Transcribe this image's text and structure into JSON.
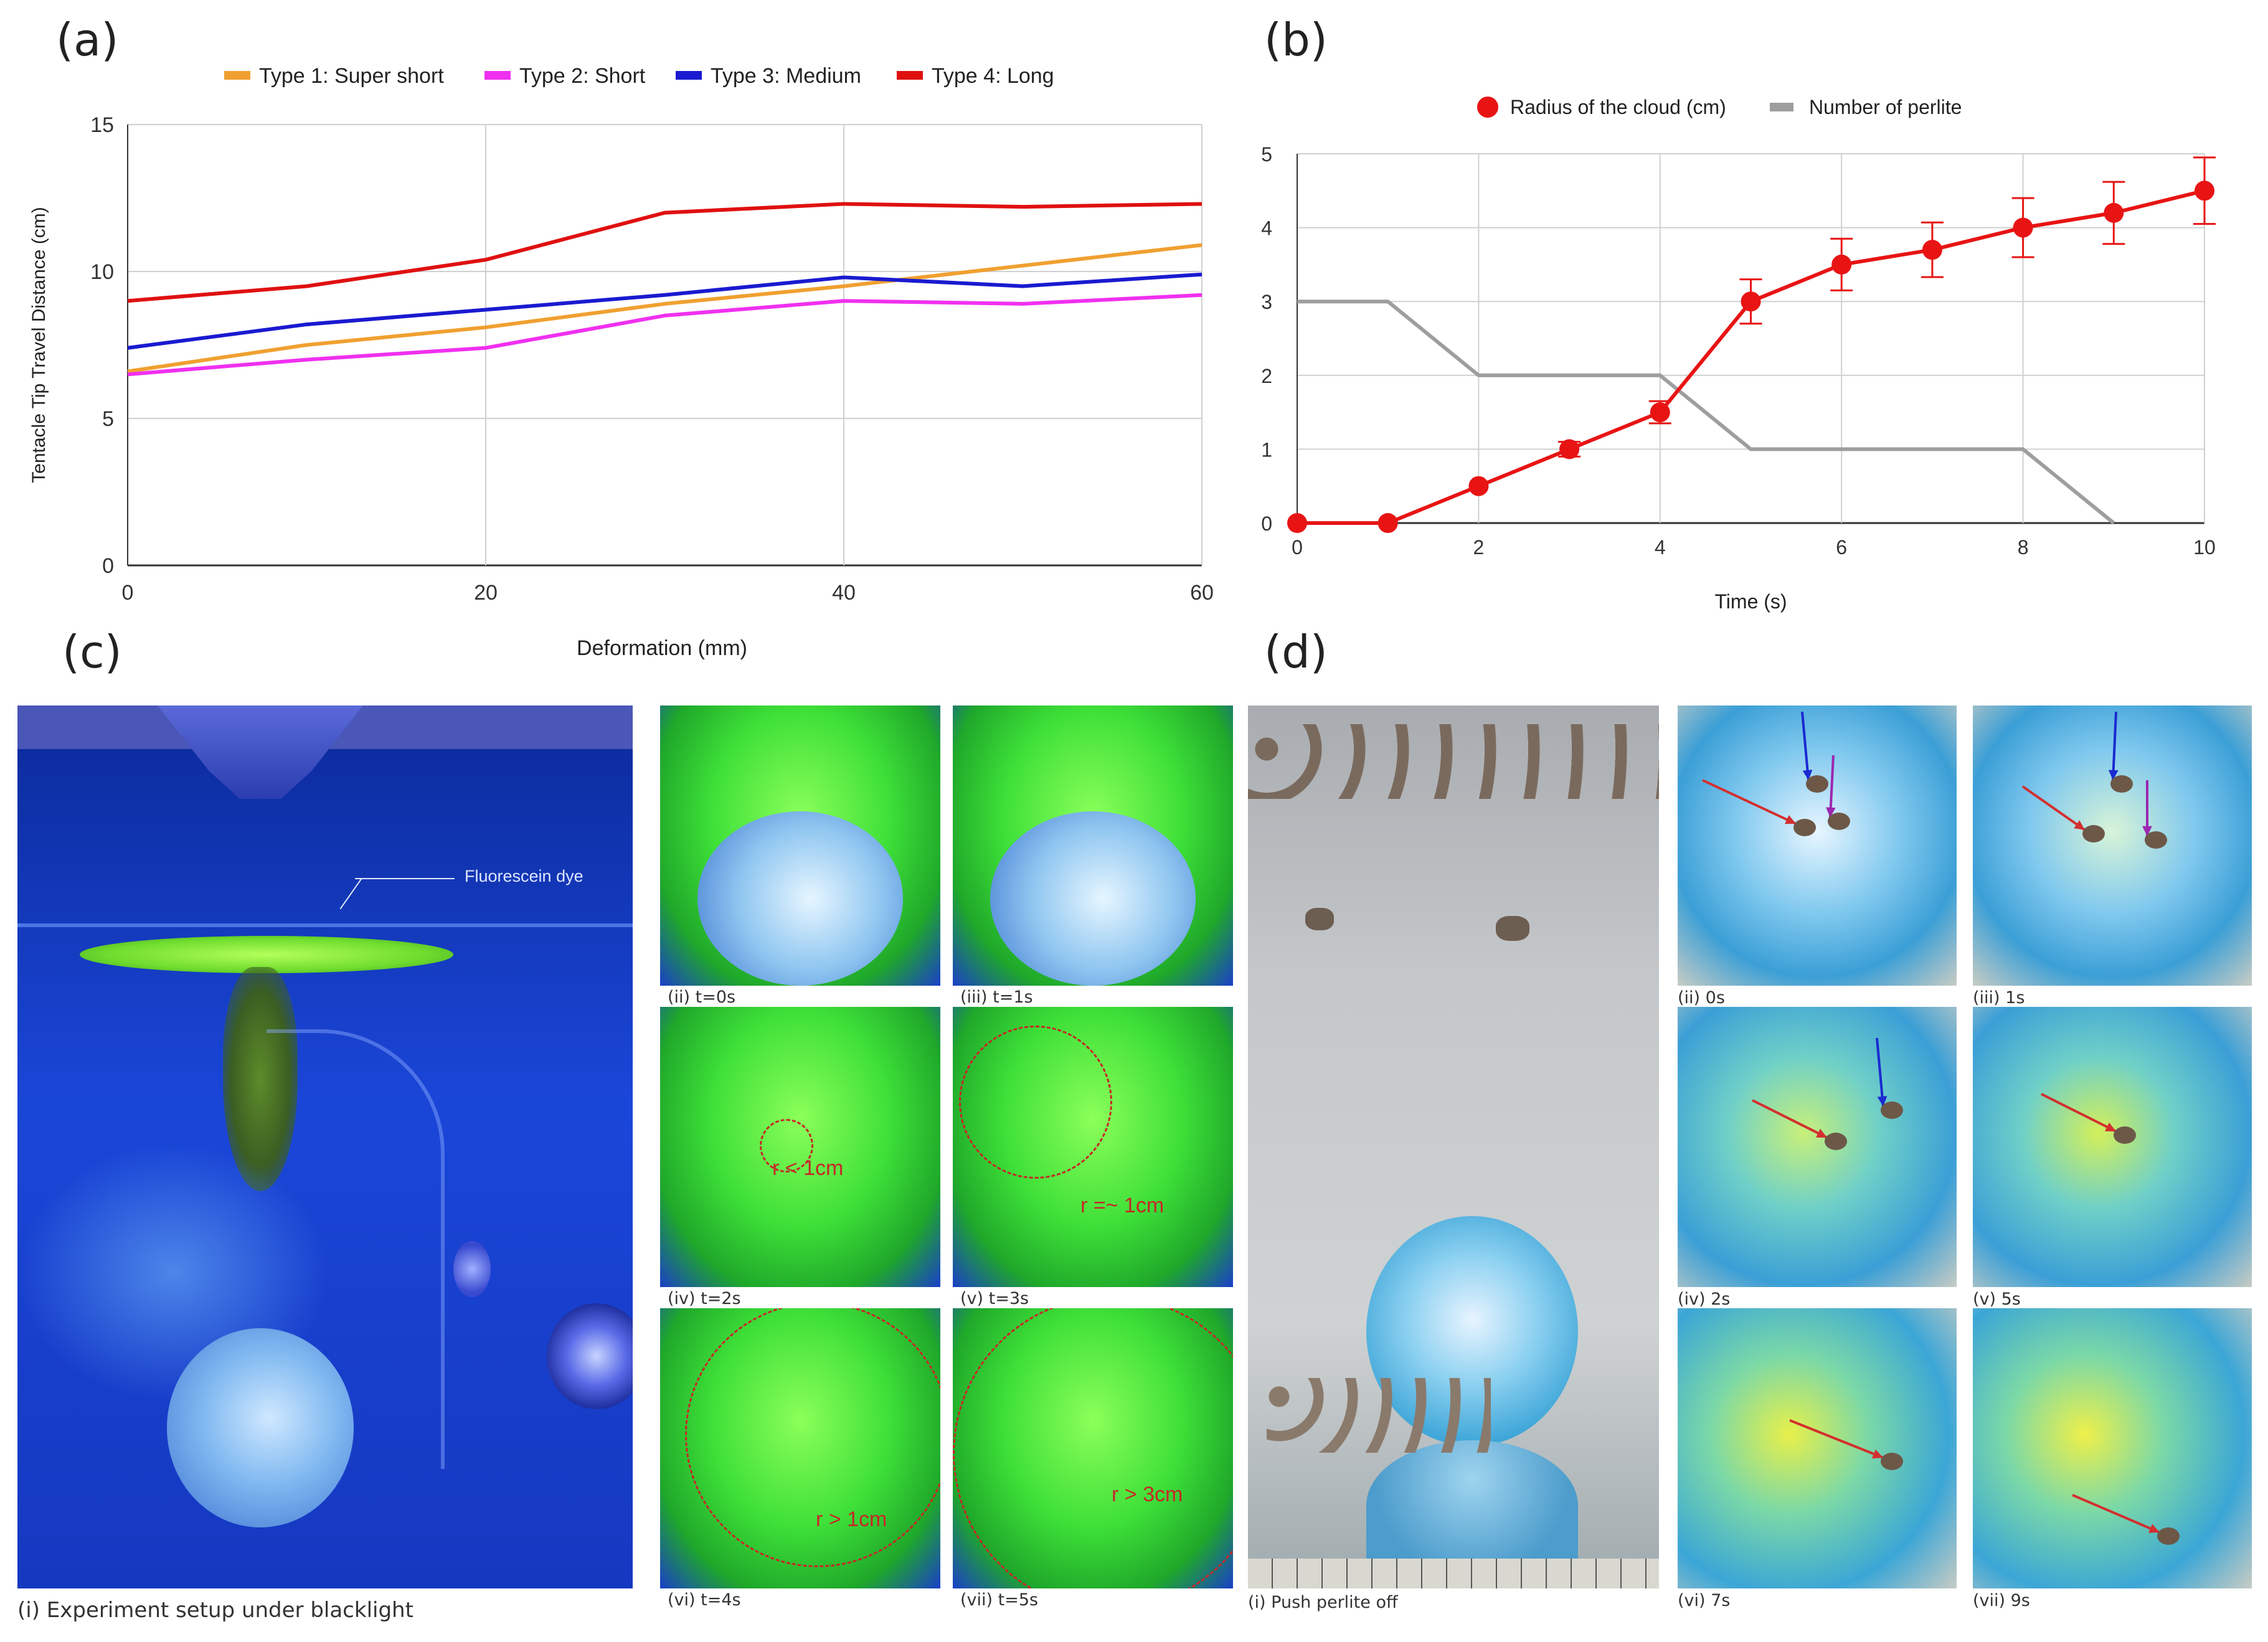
{
  "panels": {
    "a": "(a)",
    "b": "(b)",
    "c": "(c)",
    "d": "(d)"
  },
  "chart_data": [
    {
      "type": "line",
      "panel": "(a)",
      "xlabel": "Deformation (mm)",
      "ylabel": "Tentacle Tip Travel Distance (cm)",
      "xlim": [
        0,
        60
      ],
      "ylim": [
        0,
        15
      ],
      "xticks": [
        "0",
        "20",
        "40",
        "60"
      ],
      "yticks": [
        "0",
        "5",
        "10",
        "15"
      ],
      "x": [
        0,
        10,
        20,
        30,
        40,
        50,
        60
      ],
      "series": [
        {
          "name": "Type 1: Super short",
          "color": "#f0a030",
          "values": [
            6.6,
            7.5,
            8.1,
            8.9,
            9.5,
            10.2,
            10.9
          ]
        },
        {
          "name": "Type 2: Short",
          "color": "#f030f0",
          "values": [
            6.5,
            7.0,
            7.4,
            8.5,
            9.0,
            8.9,
            9.2
          ]
        },
        {
          "name": "Type 3: Medium",
          "color": "#1a1ad0",
          "values": [
            7.4,
            8.2,
            8.7,
            9.2,
            9.8,
            9.5,
            9.9
          ]
        },
        {
          "name": "Type 4: Long",
          "color": "#e01010",
          "values": [
            9.0,
            9.5,
            10.4,
            12.0,
            12.3,
            12.2,
            12.3
          ]
        }
      ],
      "legend": "top",
      "grid": true
    },
    {
      "type": "line",
      "panel": "(b)",
      "xlabel": "Time (s)",
      "ylabel": "",
      "xlim": [
        0,
        10
      ],
      "ylim": [
        0,
        5
      ],
      "xticks": [
        "0",
        "2",
        "4",
        "6",
        "8",
        "10"
      ],
      "yticks": [
        "0",
        "1",
        "2",
        "3",
        "4",
        "5"
      ],
      "legend": "top",
      "grid": true,
      "series": [
        {
          "name": "Radius of the cloud (cm)",
          "color": "#e81414",
          "marker": "circle",
          "x": [
            0,
            1,
            2,
            3,
            4,
            5,
            6,
            7,
            8,
            9,
            10
          ],
          "values": [
            0,
            0,
            0.5,
            1.0,
            1.5,
            3.0,
            3.5,
            3.7,
            4.0,
            4.2,
            4.5
          ],
          "errors": [
            0,
            0,
            0,
            0.1,
            0.15,
            0.3,
            0.35,
            0.37,
            0.4,
            0.42,
            0.45
          ]
        },
        {
          "name": "Number of perlite",
          "color": "#9e9e9e",
          "marker": "none",
          "x": [
            0,
            1,
            2,
            4,
            5,
            8,
            9
          ],
          "values": [
            3,
            3,
            2,
            2,
            1,
            1,
            0
          ]
        }
      ]
    }
  ],
  "panel_c": {
    "setup_caption": "(i) Experiment setup under blacklight",
    "dye_label": "Fluorescein dye",
    "frames": [
      {
        "caption": "(ii) t=0s",
        "radius": ""
      },
      {
        "caption": "(iii) t=1s",
        "radius": ""
      },
      {
        "caption": "(iv) t=2s",
        "radius": "r < 1cm"
      },
      {
        "caption": "(v) t=3s",
        "radius": "r =~ 1cm"
      },
      {
        "caption": "(vi) t=4s",
        "radius": "r > 1cm"
      },
      {
        "caption": "(vii) t=5s",
        "radius": "r > 3cm"
      }
    ]
  },
  "panel_d": {
    "main_caption": "(i) Push perlite off",
    "frames": [
      {
        "caption": "(ii) 0s"
      },
      {
        "caption": "(iii)  1s"
      },
      {
        "caption": "(iv) 2s"
      },
      {
        "caption": "(v) 5s"
      },
      {
        "caption": "(vi) 7s"
      },
      {
        "caption": "(vii) 9s"
      }
    ]
  },
  "colors": {
    "grid": "#d0d0d0",
    "axis": "#333333",
    "tank_blue": "#1a3fc8",
    "dye_green": "#3ee038",
    "sponge_blue": "#4fb3e0"
  }
}
